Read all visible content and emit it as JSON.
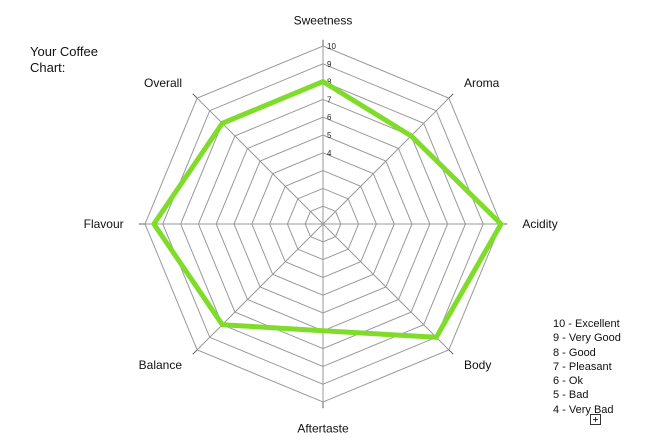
{
  "chart_data": {
    "type": "radar",
    "title": "Your Coffee Chart:",
    "axes": [
      "Sweetness",
      "Aroma",
      "Acidity",
      "Body",
      "Aftertaste",
      "Balance",
      "Flavour",
      "Overall"
    ],
    "scale_min": 0,
    "scale_max": 10,
    "tick_labels": [
      "4",
      "5",
      "6",
      "7",
      "8",
      "9",
      "10"
    ],
    "series": [
      {
        "values": [
          8,
          7,
          10,
          9,
          6,
          8,
          9.5,
          8
        ],
        "color": "#7fdc2a"
      }
    ],
    "grid": true,
    "legend_placement": "bottom-right",
    "legend": [
      "10 - Excellent",
      "9 - Very Good",
      "8 - Good",
      "7 - Pleasant",
      "6 - Ok",
      "5 - Bad",
      "4 - Very Bad"
    ]
  }
}
